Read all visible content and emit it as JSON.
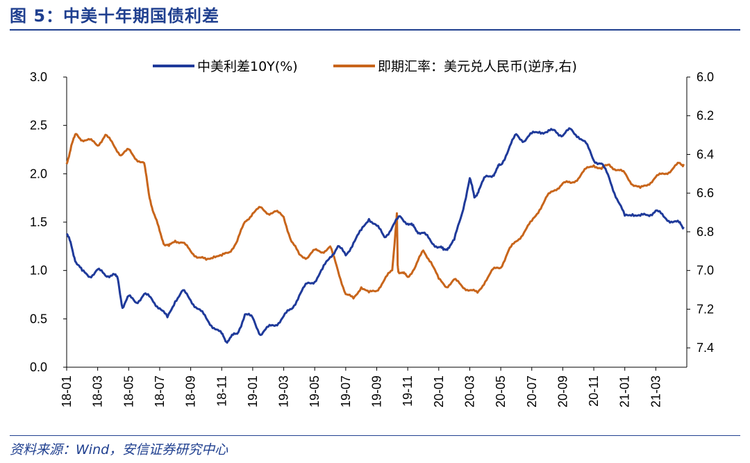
{
  "figure": {
    "title": "图 5：中美十年期国债利差",
    "source": "资料来源：Wind，安信证券研究中心"
  },
  "colors": {
    "spread": "#1f3a9a",
    "fx": "#c8651b",
    "brand": "#1f3f8f"
  },
  "chart_data": {
    "type": "line",
    "title": "中美十年期国债利差",
    "x_ticks": [
      "18-01",
      "18-03",
      "18-05",
      "18-07",
      "18-09",
      "18-11",
      "19-01",
      "19-03",
      "19-05",
      "19-07",
      "19-09",
      "19-11",
      "20-01",
      "20-03",
      "20-05",
      "20-07",
      "20-09",
      "20-11",
      "21-01",
      "21-03"
    ],
    "x_range_months": [
      0,
      40
    ],
    "y_left": {
      "label": "中美利差10Y(%)",
      "lim": [
        0,
        3.0
      ],
      "ticks": [
        "0.0",
        "0.5",
        "1.0",
        "1.5",
        "2.0",
        "2.5",
        "3.0"
      ]
    },
    "y_right": {
      "label": "即期汇率：美元兑人民币(逆序,右)",
      "lim": [
        6.0,
        7.5
      ],
      "inverted": true,
      "ticks": [
        "6.0",
        "6.2",
        "6.4",
        "6.6",
        "6.8",
        "7.0",
        "7.2",
        "7.4"
      ]
    },
    "series": [
      {
        "name": "中美利差10Y(%)",
        "axis": "left",
        "x": [
          0,
          0.3,
          0.6,
          1,
          1.5,
          2,
          2.5,
          3,
          3.3,
          3.6,
          4,
          4.5,
          5,
          5.5,
          6,
          6.5,
          7,
          7.5,
          8,
          8.5,
          9,
          9.5,
          10,
          10.3,
          10.6,
          11,
          11.5,
          12,
          12.5,
          13,
          13.5,
          14,
          14.5,
          15,
          15.5,
          16,
          16.5,
          17,
          17.5,
          18,
          18.5,
          19,
          19.5,
          20,
          20.5,
          21,
          21.5,
          22,
          22.3,
          22.6,
          23,
          23.5,
          24,
          24.3,
          24.6,
          25,
          25.5,
          26,
          26.3,
          26.6,
          27,
          27.5,
          27.8,
          28,
          28.5,
          29,
          29.5,
          30,
          30.5,
          31,
          31.5,
          32,
          32.5,
          33,
          33.5,
          34,
          34.5,
          35,
          35.5,
          36,
          36.5,
          37,
          37.5,
          38,
          38.5,
          39,
          39.5,
          39.8
        ],
        "values": [
          1.38,
          1.25,
          1.1,
          0.98,
          0.95,
          1.0,
          0.95,
          0.97,
          0.9,
          0.63,
          0.72,
          0.68,
          0.75,
          0.7,
          0.62,
          0.5,
          0.7,
          0.78,
          0.7,
          0.6,
          0.5,
          0.42,
          0.33,
          0.28,
          0.3,
          0.35,
          0.55,
          0.5,
          0.35,
          0.4,
          0.45,
          0.52,
          0.6,
          0.75,
          0.85,
          0.9,
          1.0,
          1.15,
          1.25,
          1.15,
          1.3,
          1.4,
          1.55,
          1.45,
          1.35,
          1.45,
          1.55,
          1.5,
          1.45,
          1.42,
          1.38,
          1.3,
          1.25,
          1.2,
          1.25,
          1.3,
          1.6,
          1.95,
          1.75,
          1.85,
          1.95,
          2.0,
          2.05,
          2.1,
          2.25,
          2.4,
          2.35,
          2.4,
          2.45,
          2.42,
          2.45,
          2.4,
          2.45,
          2.4,
          2.3,
          2.15,
          2.1,
          1.95,
          1.75,
          1.55,
          1.6,
          1.55,
          1.58,
          1.62,
          1.55,
          1.52,
          1.48,
          1.45
        ]
      },
      {
        "name": "即期汇率：美元兑人民币(逆序,右)",
        "axis": "right",
        "x": [
          0,
          0.3,
          0.6,
          1,
          1.5,
          2,
          2.5,
          3,
          3.5,
          4,
          4.5,
          5,
          5.3,
          5.6,
          6,
          6.3,
          6.6,
          7,
          7.5,
          8,
          8.5,
          9,
          9.5,
          10,
          10.5,
          11,
          11.5,
          12,
          12.5,
          13,
          13.5,
          14,
          14.5,
          15,
          15.5,
          16,
          16.5,
          17,
          17.5,
          18,
          18.5,
          19,
          19.5,
          20,
          20.5,
          21,
          21.3,
          21.35,
          21.4,
          21.7,
          22,
          22.5,
          23,
          23.5,
          24,
          24.5,
          25,
          25.5,
          26,
          26.5,
          27,
          27.5,
          28,
          28.5,
          29,
          29.5,
          30,
          30.5,
          31,
          31.5,
          32,
          32.5,
          33,
          33.5,
          34,
          34.5,
          35,
          35.5,
          36,
          36.5,
          37,
          37.5,
          38,
          38.5,
          39,
          39.5,
          39.8
        ],
        "values": [
          6.45,
          6.35,
          6.3,
          6.32,
          6.33,
          6.35,
          6.3,
          6.35,
          6.4,
          6.38,
          6.42,
          6.45,
          6.6,
          6.7,
          6.8,
          6.86,
          6.88,
          6.84,
          6.86,
          6.9,
          6.93,
          6.95,
          6.92,
          6.93,
          6.9,
          6.85,
          6.75,
          6.7,
          6.68,
          6.7,
          6.7,
          6.72,
          6.85,
          6.92,
          6.93,
          6.9,
          6.9,
          6.88,
          7.0,
          7.12,
          7.15,
          7.08,
          7.12,
          7.1,
          7.05,
          7.0,
          6.7,
          6.98,
          7.0,
          7.02,
          7.03,
          6.98,
          6.9,
          6.95,
          7.05,
          7.08,
          7.05,
          7.08,
          7.1,
          7.12,
          7.05,
          7.0,
          6.98,
          6.9,
          6.85,
          6.8,
          6.75,
          6.68,
          6.62,
          6.58,
          6.55,
          6.55,
          6.52,
          6.48,
          6.45,
          6.48,
          6.45,
          6.48,
          6.5,
          6.55,
          6.58,
          6.55,
          6.52,
          6.5,
          6.48,
          6.45,
          6.45
        ]
      }
    ],
    "legend": "top"
  }
}
